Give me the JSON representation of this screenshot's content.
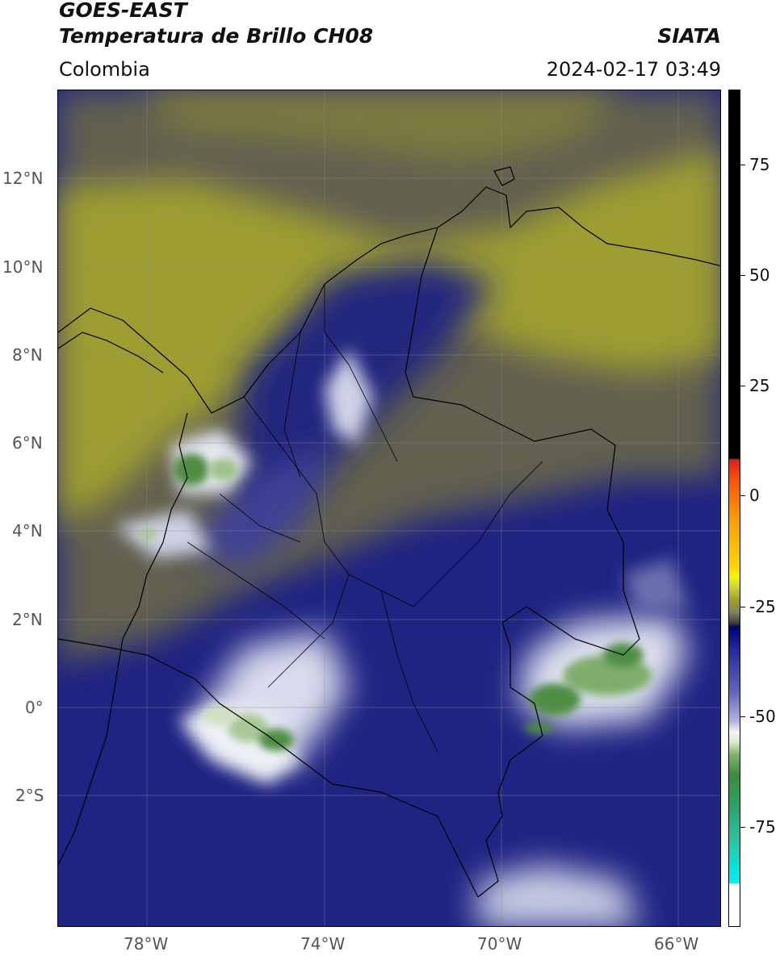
{
  "header": {
    "satellite": "GOES-EAST",
    "product": "Temperatura de Brillo CH08",
    "region": "Colombia",
    "source": "SIATA",
    "datetime": "2024-02-17 03:49"
  },
  "map": {
    "lat_ticks": [
      "12°N",
      "10°N",
      "8°N",
      "6°N",
      "4°N",
      "2°N",
      "0°",
      "2°S"
    ],
    "lon_ticks": [
      "78°W",
      "74°W",
      "70°W",
      "66°W"
    ],
    "extent": {
      "lon_min": -80.0,
      "lon_max": -65.0,
      "lat_min": -5.0,
      "lat_max": 14.0
    },
    "grid": true
  },
  "colorbar": {
    "ticks": [
      "75",
      "50",
      "25",
      "0",
      "-25",
      "-50",
      "-75"
    ],
    "unit_range": [
      -95,
      90
    ]
  },
  "colors": {
    "dry_olive": "#a8a828",
    "mid_gray": "#707062",
    "deep_navy": "#1c1f86",
    "cloud_white": "#e6e8f2",
    "cold_green": "#4f8d45"
  }
}
